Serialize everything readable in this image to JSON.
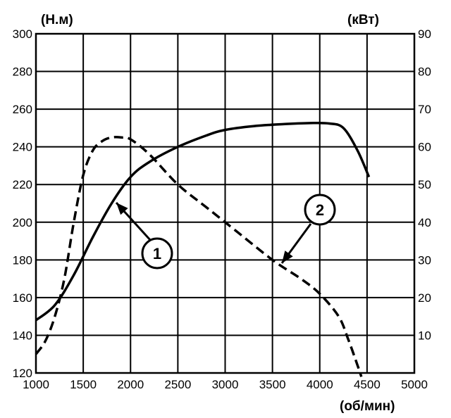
{
  "chart_data": {
    "type": "line",
    "title": "",
    "xlabel": "(об/мин)",
    "ylabel_left": "(Н.м)",
    "ylabel_right": "(кВт)",
    "xlim": [
      1000,
      5000
    ],
    "ylim_left": [
      120,
      300
    ],
    "ylim_right": [
      0,
      90
    ],
    "x_ticks": [
      1000,
      1500,
      2000,
      2500,
      3000,
      3500,
      4000,
      4500,
      5000
    ],
    "y_left_ticks": [
      120,
      140,
      160,
      180,
      200,
      220,
      240,
      260,
      280,
      300
    ],
    "y_right_ticks": [
      10,
      20,
      30,
      40,
      50,
      60,
      70,
      80,
      90
    ],
    "grid": true,
    "series": [
      {
        "callout": "1",
        "axis": "right",
        "style": "solid",
        "x": [
          1000,
          1200,
          1400,
          1600,
          1800,
          2000,
          2200,
          2500,
          2800,
          3000,
          3300,
          3600,
          3900,
          4100,
          4250,
          4400,
          4520
        ],
        "values": [
          14,
          18,
          26,
          36,
          45,
          52,
          56,
          60,
          63,
          64.5,
          65.5,
          66,
          66.3,
          66.2,
          65,
          59,
          52
        ]
      },
      {
        "callout": "2",
        "axis": "left",
        "style": "dashed",
        "x": [
          1000,
          1100,
          1200,
          1300,
          1400,
          1500,
          1600,
          1700,
          1800,
          1900,
          2000,
          2200,
          2500,
          2800,
          3100,
          3500,
          3800,
          4000,
          4200,
          4300,
          4400,
          4440
        ],
        "values": [
          130,
          137,
          150,
          170,
          200,
          225,
          238,
          243,
          245,
          245,
          244,
          236,
          220,
          208,
          196,
          180,
          170,
          162,
          150,
          138,
          124,
          118
        ]
      }
    ]
  }
}
